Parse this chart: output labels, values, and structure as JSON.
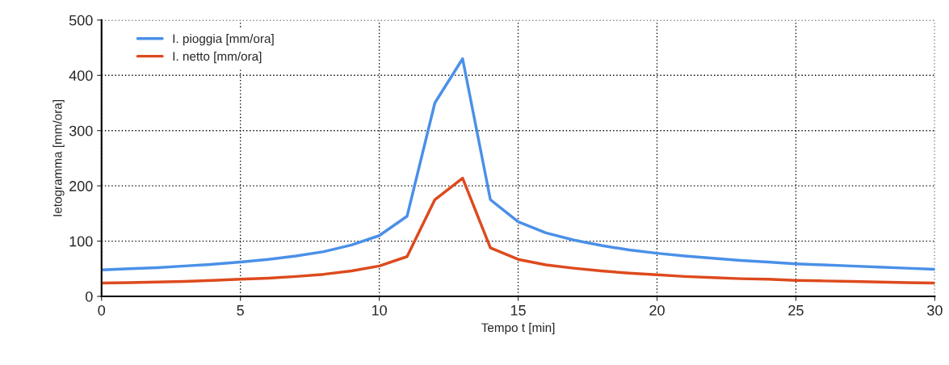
{
  "chart_data": {
    "type": "line",
    "xlabel": "Tempo t [min]",
    "ylabel": "Ietogramma [mm/ora]",
    "x": [
      0,
      1,
      2,
      3,
      4,
      5,
      6,
      7,
      8,
      9,
      10,
      11,
      12,
      13,
      14,
      15,
      16,
      17,
      18,
      19,
      20,
      21,
      22,
      23,
      24,
      25,
      26,
      27,
      28,
      29,
      30
    ],
    "series": [
      {
        "name": "I. pioggia [mm/ora]",
        "color": "#4a90e8",
        "values": [
          48,
          50,
          52,
          55,
          58,
          62,
          67,
          73,
          81,
          93,
          110,
          145,
          350,
          430,
          175,
          135,
          115,
          102,
          92,
          84,
          78,
          73,
          69,
          65,
          62,
          59,
          57,
          55,
          53,
          51,
          49
        ]
      },
      {
        "name": "I. netto [mm/ora]",
        "color": "#dd4a1e",
        "values": [
          24,
          25,
          26,
          27,
          29,
          31,
          33,
          36,
          40,
          46,
          55,
          72,
          175,
          214,
          88,
          67,
          57,
          51,
          46,
          42,
          39,
          36,
          34,
          32,
          31,
          29,
          28,
          27,
          26,
          25,
          24
        ]
      }
    ],
    "xlim": [
      0,
      30
    ],
    "xticks": [
      0,
      5,
      10,
      15,
      20,
      25,
      30
    ],
    "ylim": [
      0,
      500
    ],
    "yticks": [
      0,
      100,
      200,
      300,
      400,
      500
    ],
    "grid": true,
    "legend": "top left",
    "marker": "none",
    "line_style": "solid"
  }
}
